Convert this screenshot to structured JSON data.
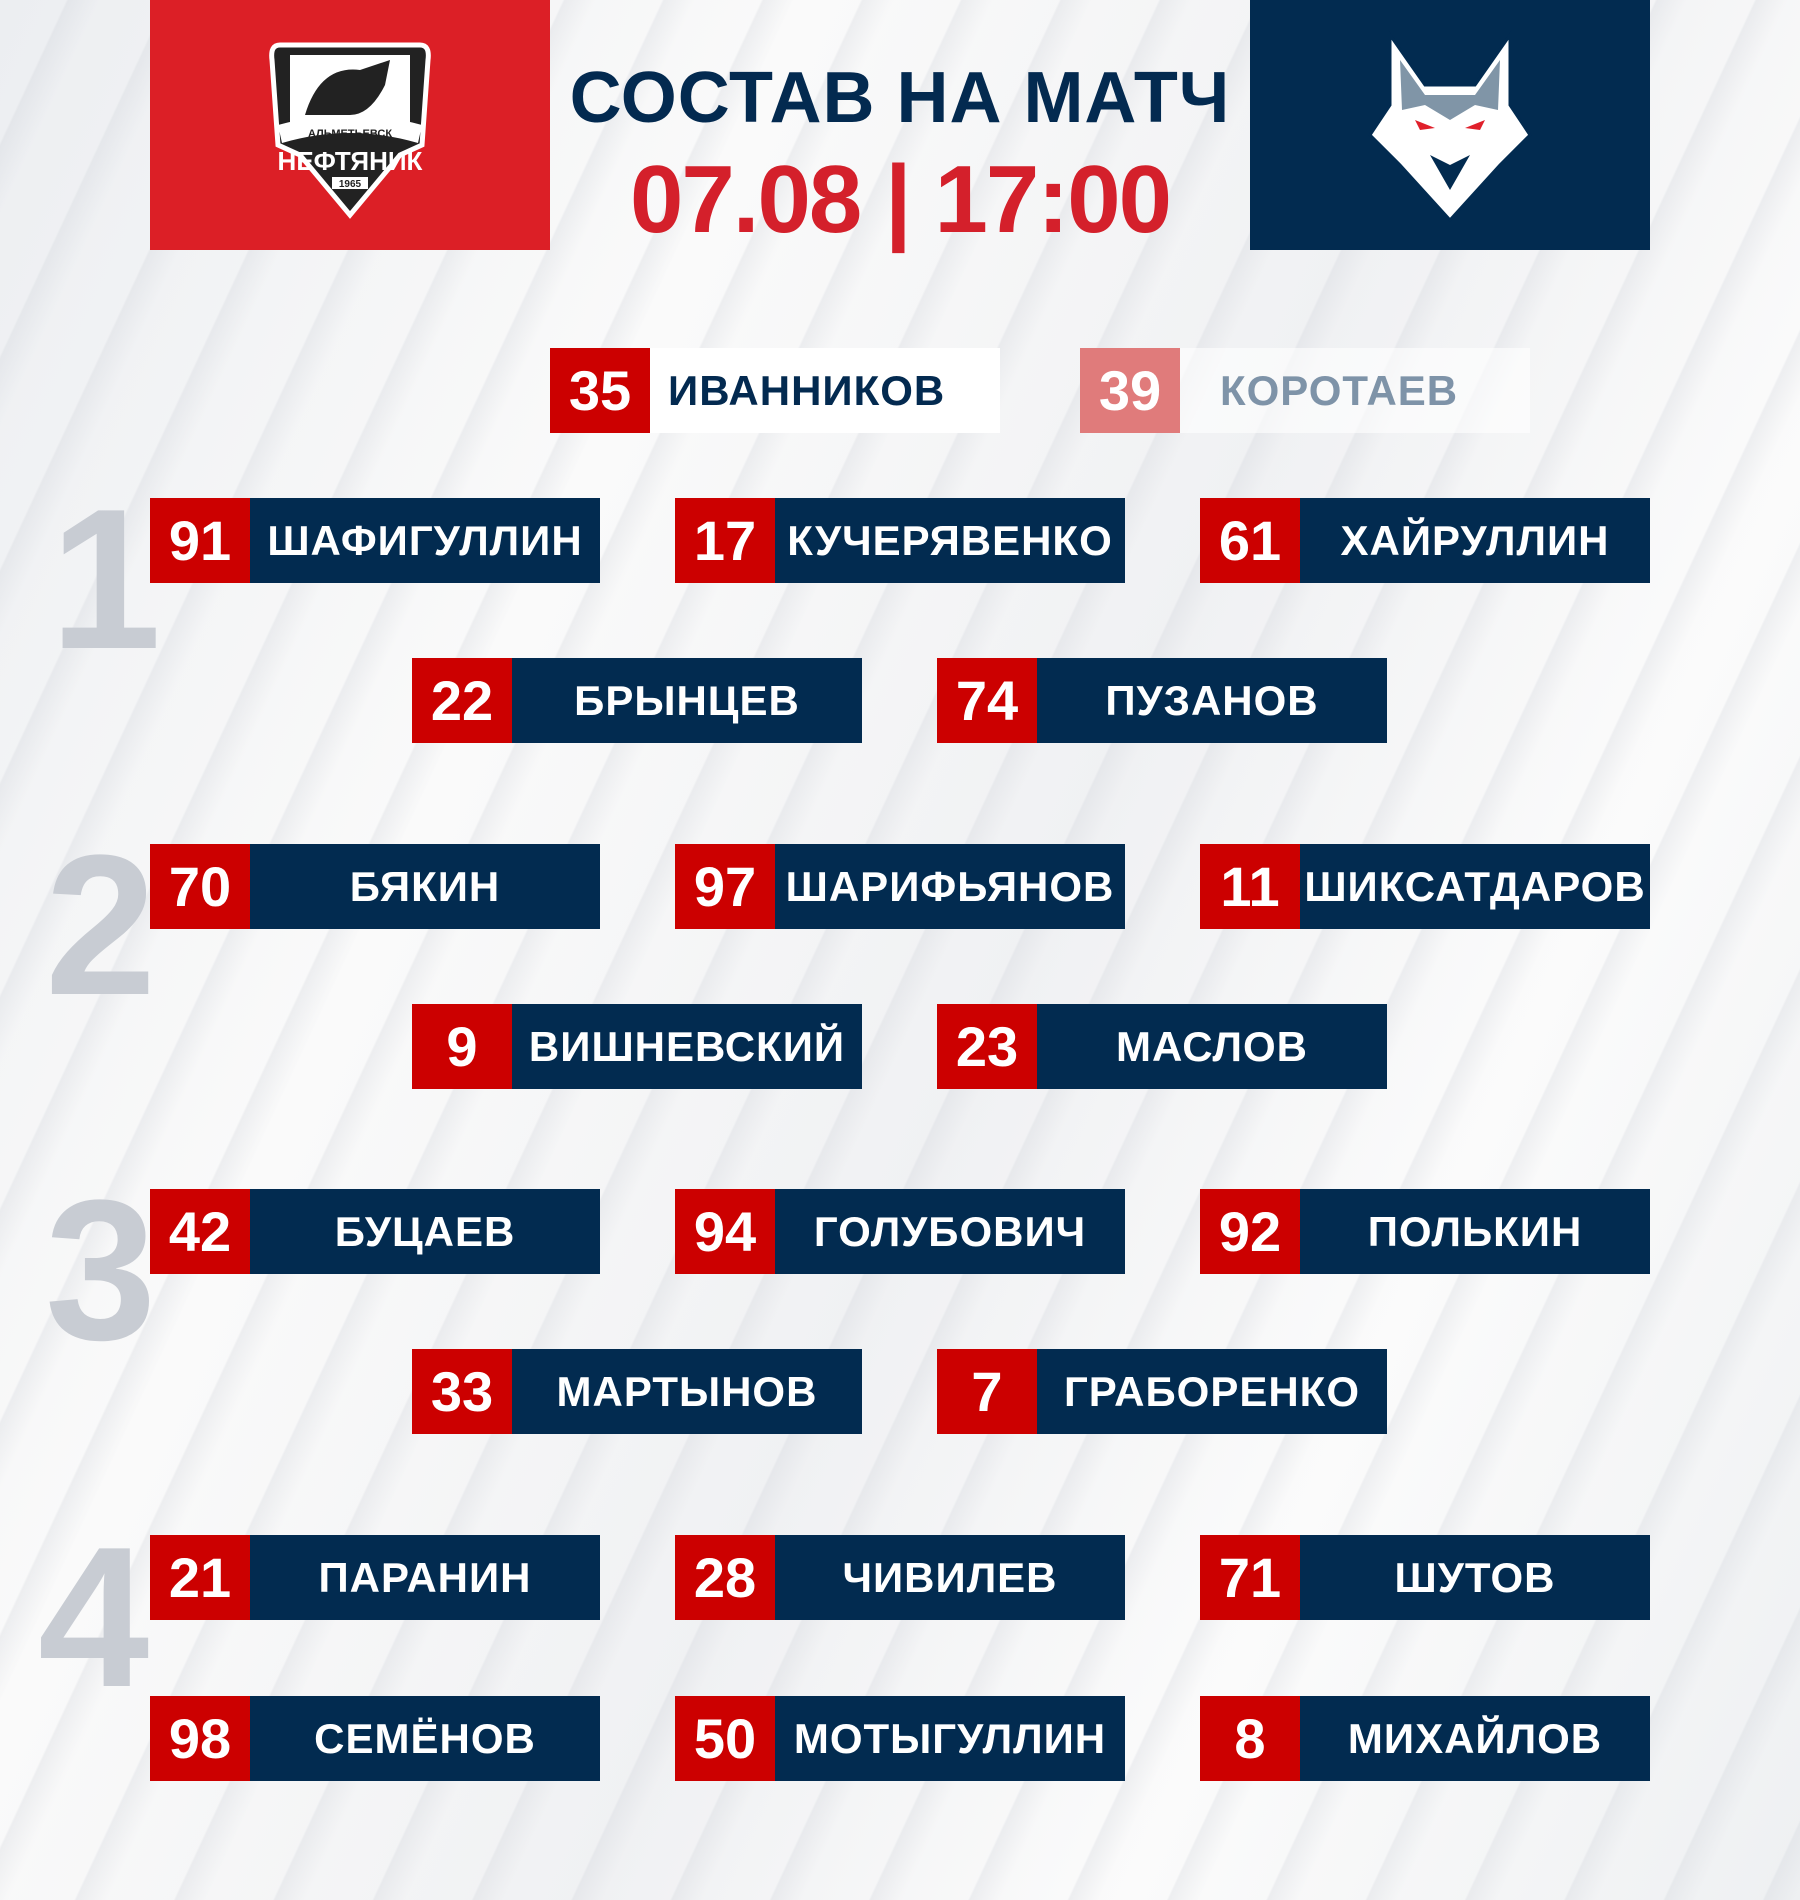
{
  "header": {
    "title": "СОСТАВ НА МАТЧ",
    "datetime": "07.08 | 17:00",
    "home_logo": {
      "icon": "bull-shield-logo",
      "text_top": "АЛЬМЕТЬЕВСК",
      "text_main": "НЕФТЯНИК",
      "year": "1965",
      "bg": "#dc1f26"
    },
    "away_logo": {
      "icon": "wolf-head-logo",
      "bg": "#022b50"
    }
  },
  "goalies": [
    {
      "number": "35",
      "name": "ИВАННИКОВ"
    },
    {
      "number": "39",
      "name": "КОРОТАЕВ"
    }
  ],
  "lines": [
    {
      "label": "1",
      "forwards": [
        {
          "number": "91",
          "name": "ШАФИГУЛЛИН"
        },
        {
          "number": "17",
          "name": "КУЧЕРЯВЕНКО"
        },
        {
          "number": "61",
          "name": "ХАЙРУЛЛИН"
        }
      ],
      "defense": [
        {
          "number": "22",
          "name": "БРЫНЦЕВ"
        },
        {
          "number": "74",
          "name": "ПУЗАНОВ"
        }
      ]
    },
    {
      "label": "2",
      "forwards": [
        {
          "number": "70",
          "name": "БЯКИН"
        },
        {
          "number": "97",
          "name": "ШАРИФЬЯНОВ"
        },
        {
          "number": "11",
          "name": "ШИКСАТДАРОВ"
        }
      ],
      "defense": [
        {
          "number": "9",
          "name": "ВИШНЕВСКИЙ"
        },
        {
          "number": "23",
          "name": "МАСЛОВ"
        }
      ]
    },
    {
      "label": "3",
      "forwards": [
        {
          "number": "42",
          "name": "БУЦАЕВ"
        },
        {
          "number": "94",
          "name": "ГОЛУБОВИЧ"
        },
        {
          "number": "92",
          "name": "ПОЛЬКИН"
        }
      ],
      "defense": [
        {
          "number": "33",
          "name": "МАРТЫНОВ"
        },
        {
          "number": "7",
          "name": "ГРАБОРЕНКО"
        }
      ]
    },
    {
      "label": "4",
      "forwards": [
        {
          "number": "21",
          "name": "ПАРАНИН"
        },
        {
          "number": "28",
          "name": "ЧИВИЛЕВ"
        },
        {
          "number": "71",
          "name": "ШУТОВ"
        }
      ],
      "extra": [
        {
          "number": "98",
          "name": "СЕМЁНОВ"
        },
        {
          "number": "50",
          "name": "МОТЫГУЛЛИН"
        },
        {
          "number": "8",
          "name": "МИХАЙЛОВ"
        }
      ]
    }
  ],
  "colors": {
    "red": "#cc0000",
    "navy": "#022b50",
    "line_number": "#c8ccd3"
  }
}
